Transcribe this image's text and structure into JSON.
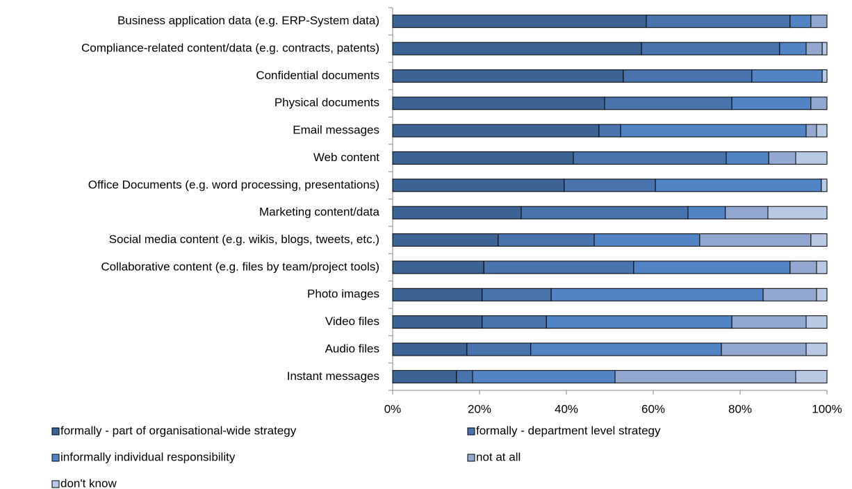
{
  "chart_data": {
    "type": "stacked_bar_horizontal",
    "categories": [
      "Business application data (e.g. ERP-System data)",
      "Compliance-related content/data (e.g. contracts, patents)",
      "Confidential documents",
      "Physical documents",
      "Email messages",
      "Web content",
      "Office Documents (e.g. word processing, presentations)",
      "Marketing content/data",
      "Social media content (e.g. wikis, blogs, tweets, etc.)",
      "Collaborative content (e.g. files by team/project tools)",
      "Photo images",
      "Video files",
      "Audio files",
      "Instant messages"
    ],
    "series": [
      {
        "name": "formally - part of organisational-wide strategy",
        "color": "#3d6294",
        "values": [
          58.4,
          57.3,
          53.1,
          48.8,
          47.5,
          41.6,
          39.5,
          29.6,
          24.3,
          21.0,
          20.6,
          20.6,
          17.1,
          14.7
        ]
      },
      {
        "name": "formally - department level strategy",
        "color": "#4873ac",
        "values": [
          33.1,
          31.8,
          29.6,
          29.3,
          5.0,
          35.2,
          21.0,
          38.4,
          22.1,
          34.5,
          15.9,
          14.8,
          14.7,
          3.7
        ]
      },
      {
        "name": "informally individual responsibility",
        "color": "#5283c4",
        "values": [
          4.8,
          6.1,
          16.2,
          18.2,
          42.7,
          9.8,
          38.2,
          8.6,
          24.3,
          36.0,
          48.8,
          42.7,
          43.9,
          32.8
        ]
      },
      {
        "name": "not at all",
        "color": "#92a8d0",
        "values": [
          3.7,
          3.7,
          0,
          3.7,
          2.4,
          6.2,
          0,
          9.8,
          25.6,
          6.1,
          12.3,
          17.1,
          19.5,
          41.6
        ]
      },
      {
        "name": "don't know",
        "color": "#b9c8e3",
        "values": [
          0,
          1.1,
          1.1,
          0,
          2.4,
          7.2,
          1.3,
          13.6,
          3.7,
          2.4,
          2.4,
          4.8,
          4.8,
          7.2
        ]
      }
    ],
    "xlim": [
      0,
      100
    ],
    "xticks": [
      {
        "value": 0,
        "label": "0%"
      },
      {
        "value": 20,
        "label": "20%"
      },
      {
        "value": 40,
        "label": "40%"
      },
      {
        "value": 60,
        "label": "60%"
      },
      {
        "value": 80,
        "label": "80%"
      },
      {
        "value": 100,
        "label": "100%"
      }
    ],
    "grid": false,
    "legend": "bottom"
  }
}
